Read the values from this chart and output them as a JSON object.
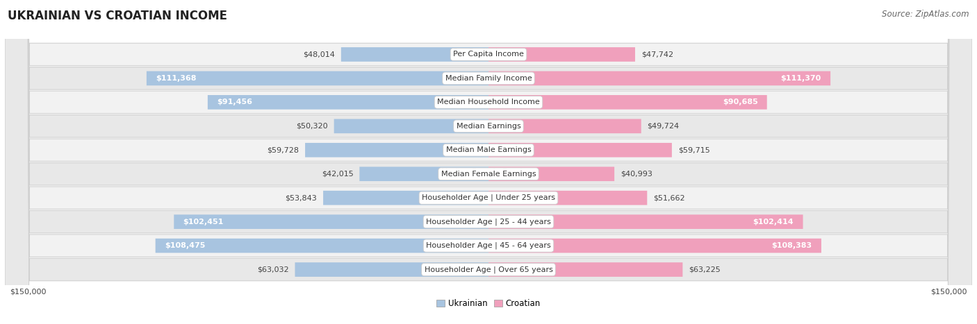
{
  "title": "UKRAINIAN VS CROATIAN INCOME",
  "source": "Source: ZipAtlas.com",
  "categories": [
    "Per Capita Income",
    "Median Family Income",
    "Median Household Income",
    "Median Earnings",
    "Median Male Earnings",
    "Median Female Earnings",
    "Householder Age | Under 25 years",
    "Householder Age | 25 - 44 years",
    "Householder Age | 45 - 64 years",
    "Householder Age | Over 65 years"
  ],
  "ukrainian_values": [
    48014,
    111368,
    91456,
    50320,
    59728,
    42015,
    53843,
    102451,
    108475,
    63032
  ],
  "croatian_values": [
    47742,
    111370,
    90685,
    49724,
    59715,
    40993,
    51662,
    102414,
    108383,
    63225
  ],
  "ukrainian_labels": [
    "$48,014",
    "$111,368",
    "$91,456",
    "$50,320",
    "$59,728",
    "$42,015",
    "$53,843",
    "$102,451",
    "$108,475",
    "$63,032"
  ],
  "croatian_labels": [
    "$47,742",
    "$111,370",
    "$90,685",
    "$49,724",
    "$59,715",
    "$40,993",
    "$51,662",
    "$102,414",
    "$108,383",
    "$63,225"
  ],
  "max_value": 150000,
  "ukrainian_color": "#a8c4e0",
  "croatian_color": "#f0a0bc",
  "row_color_odd": "#f2f2f2",
  "row_color_even": "#e8e8e8",
  "row_border_color": "#d0d0d0",
  "label_inside_threshold": 65000,
  "title_fontsize": 12,
  "source_fontsize": 8.5,
  "bar_label_fontsize": 8,
  "category_fontsize": 8,
  "axis_fontsize": 8
}
